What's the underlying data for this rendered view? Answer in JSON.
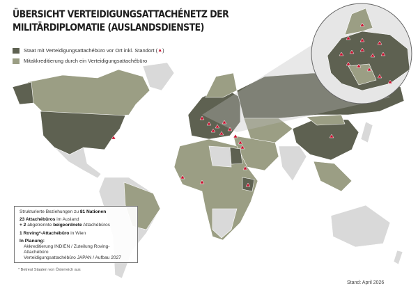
{
  "title": {
    "line1": "ÜBERSICHT VERTEIDIGUNGSATTACHÉNETZ DER",
    "line2": "MILITÄRDIPLOMATIE (AUSLANDSDIENSTE)"
  },
  "legend": [
    {
      "label": "Staat mit Verteidigungsattachébüro vor Ort inkl. Standort (",
      "suffix": ")",
      "color": "#5e6151",
      "marker": "red-triangle"
    },
    {
      "label": "Mitakkreditierung durch ein Verteidigungsattachébüro",
      "color": "#9b9e84"
    }
  ],
  "colors": {
    "attache_state": "#5e6151",
    "co_accredited": "#9b9e84",
    "other": "#d9d9d9",
    "marker": "#c8102e"
  },
  "infobox": {
    "line1_pre": "Strukturierte Beziehungen zu ",
    "line1_bold": "81 Nationen",
    "line2_bold": "23 Attachébüros",
    "line2_rest": " im Ausland",
    "line3_bold1": "+ 2",
    "line3_mid": " abgetrennte ",
    "line3_bold2": "beigeordnete",
    "line3_rest": " Attachébüros",
    "line4_bold": "1 Roving*-Attachébüro",
    "line4_rest": " in Wien",
    "planning_title": "In Planung:",
    "planning_items": [
      "Akkreditierung INDIEN / Zuteilung Roving-Attachébüro",
      "Verteidigungsattachébüro JAPAN / Aufbau 2027"
    ]
  },
  "footnote": "*  Betreut Staaten von Österreich aus",
  "stand": "Stand: April 2026"
}
